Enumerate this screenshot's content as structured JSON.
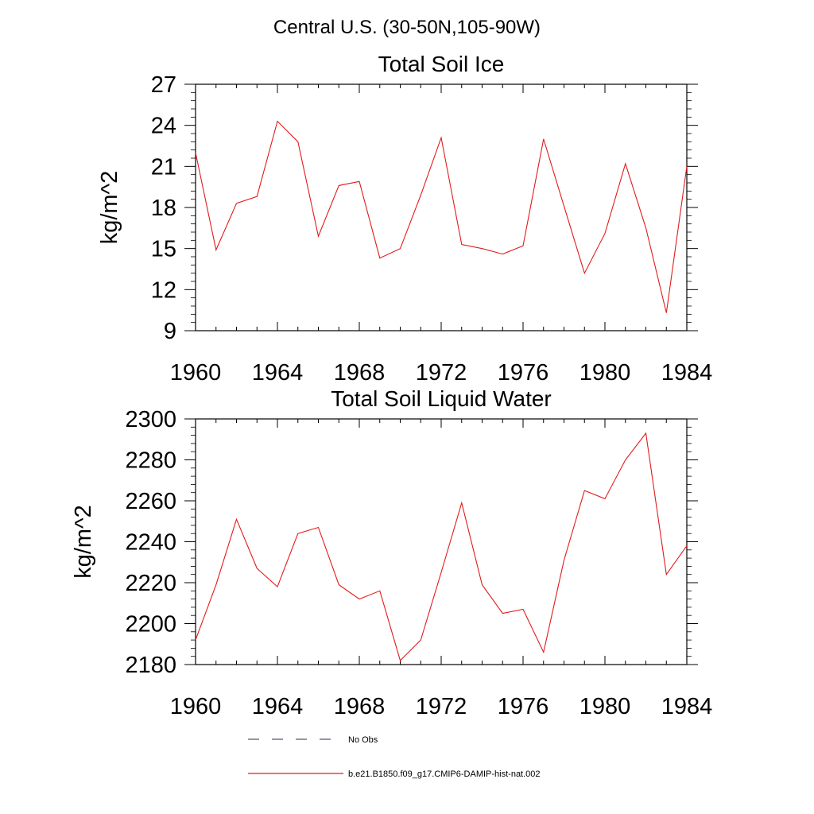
{
  "figure": {
    "suptitle": "Central U.S. (30-50N,105-90W)",
    "legend": [
      {
        "label": "No Obs",
        "style": "dashed",
        "color": "#555577"
      },
      {
        "label": "b.e21.B1850.f09_g17.CMIP6-DAMIP-hist-nat.002",
        "style": "solid",
        "color": "#e31a1c"
      }
    ]
  },
  "chart_data": [
    {
      "type": "line",
      "title": "Total Soil Ice",
      "xlabel": "",
      "ylabel": "kg/m^2",
      "xlim": [
        1960,
        1984
      ],
      "ylim": [
        9,
        27
      ],
      "xticks": [
        1960,
        1964,
        1968,
        1972,
        1976,
        1980,
        1984
      ],
      "yticks": [
        9,
        12,
        15,
        18,
        21,
        24,
        27
      ],
      "x": [
        1960,
        1961,
        1962,
        1963,
        1964,
        1965,
        1966,
        1967,
        1968,
        1969,
        1970,
        1971,
        1972,
        1973,
        1974,
        1975,
        1976,
        1977,
        1978,
        1979,
        1980,
        1981,
        1982,
        1983,
        1984
      ],
      "series": [
        {
          "values": [
            22.0,
            14.9,
            18.3,
            18.8,
            24.3,
            22.8,
            15.9,
            19.6,
            19.9,
            14.3,
            15.0,
            18.9,
            23.1,
            15.3,
            15.0,
            14.6,
            15.2,
            23.0,
            18.1,
            13.2,
            16.1,
            21.2,
            16.5,
            10.3,
            21.0
          ],
          "color": "#e31a1c"
        }
      ]
    },
    {
      "type": "line",
      "title": "Total Soil Liquid Water",
      "xlabel": "",
      "ylabel": "kg/m^2",
      "xlim": [
        1960,
        1984
      ],
      "ylim": [
        2180,
        2300
      ],
      "xticks": [
        1960,
        1964,
        1968,
        1972,
        1976,
        1980,
        1984
      ],
      "yticks": [
        2180,
        2200,
        2220,
        2240,
        2260,
        2280,
        2300
      ],
      "x": [
        1960,
        1961,
        1962,
        1963,
        1964,
        1965,
        1966,
        1967,
        1968,
        1969,
        1970,
        1971,
        1972,
        1973,
        1974,
        1975,
        1976,
        1977,
        1978,
        1979,
        1980,
        1981,
        1982,
        1983,
        1984
      ],
      "series": [
        {
          "values": [
            2192,
            2219,
            2251,
            2227,
            2218,
            2244,
            2247,
            2219,
            2212,
            2216,
            2182,
            2192,
            2225,
            2259,
            2219,
            2205,
            2207,
            2186,
            2231,
            2265,
            2261,
            2280,
            2293,
            2224,
            2238
          ],
          "color": "#e31a1c"
        }
      ]
    }
  ]
}
